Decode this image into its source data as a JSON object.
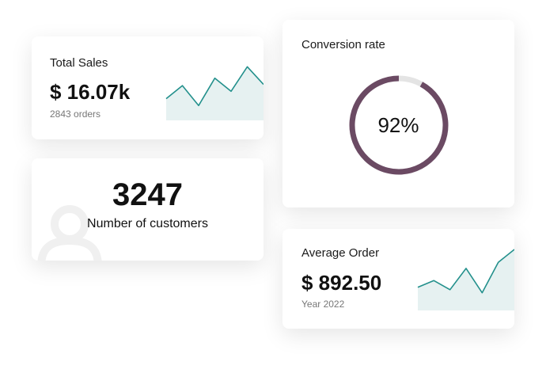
{
  "cards": {
    "total_sales": {
      "title": "Total Sales",
      "value": "$ 16.07k",
      "subtitle": "2843 orders",
      "sparkline": {
        "type": "line",
        "values": [
          38,
          61,
          26,
          74,
          51,
          94,
          63
        ],
        "ylim": [
          0,
          100
        ],
        "color": "#23908c",
        "fill": "#e6f1f1"
      }
    },
    "customers": {
      "value": "3247",
      "label": "Number of customers"
    },
    "conversion": {
      "title": "Conversion rate",
      "chart": {
        "type": "donut",
        "value": 92,
        "value_label": "92%",
        "ylim": [
          0,
          100
        ],
        "color": "#6b4a63",
        "track": "#e4e4e4"
      }
    },
    "average_order": {
      "title": "Average Order",
      "value": "$ 892.50",
      "subtitle": "Year 2022",
      "sparkline": {
        "type": "line",
        "values": [
          38,
          49,
          34,
          69,
          29,
          79,
          100
        ],
        "ylim": [
          0,
          100
        ],
        "color": "#23908c",
        "fill": "#e6f1f1"
      }
    }
  }
}
